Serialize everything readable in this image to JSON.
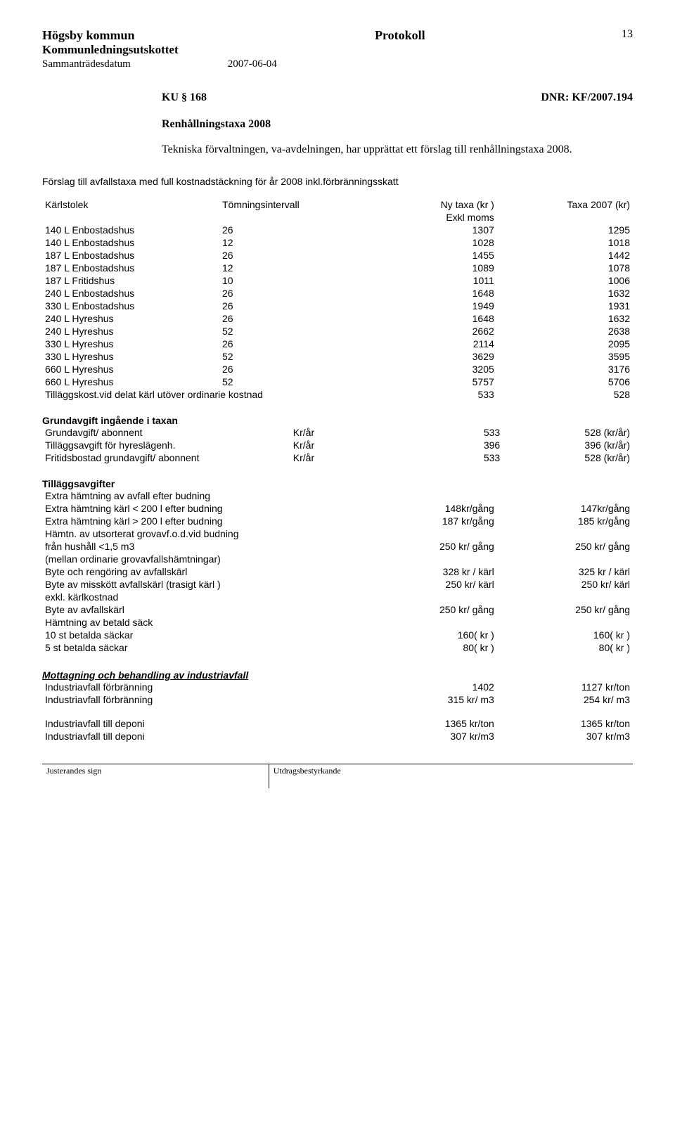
{
  "header": {
    "kommun": "Högsby kommun",
    "protokoll": "Protokoll",
    "page": "13",
    "kommitte": "Kommunledningsutskottet",
    "datum_label": "Sammanträdesdatum",
    "datum": "2007-06-04"
  },
  "ku": {
    "label": "KU § 168",
    "dnr": "DNR: KF/2007.194"
  },
  "title": "Renhållningstaxa 2008",
  "intro": "Tekniska förvaltningen, va-avdelningen, har upprättat ett förslag till renhållningstaxa 2008.",
  "forslag": "Förslag till avfallstaxa med full kostnadstäckning för år 2008 inkl.förbränningsskatt",
  "main_table": {
    "headers": [
      "Kärlstolek",
      "Tömningsintervall",
      "Ny taxa (kr )",
      "Taxa 2007 (kr)"
    ],
    "subheader": "Exkl moms",
    "rows": [
      [
        "140 L  Enbostadshus",
        "26",
        "1307",
        "1295"
      ],
      [
        "140 L  Enbostadshus",
        "12",
        "1028",
        "1018"
      ],
      [
        "187 L  Enbostadshus",
        "26",
        "1455",
        "1442"
      ],
      [
        "187 L  Enbostadshus",
        "12",
        "1089",
        "1078"
      ],
      [
        "187 L  Fritidshus",
        "10",
        "1011",
        "1006"
      ],
      [
        "240 L  Enbostadshus",
        "26",
        "1648",
        "1632"
      ],
      [
        "330 L  Enbostadshus",
        "26",
        "1949",
        "1931"
      ],
      [
        "240 L  Hyreshus",
        "26",
        "1648",
        "1632"
      ],
      [
        "240 L  Hyreshus",
        "52",
        "2662",
        "2638"
      ],
      [
        "330 L  Hyreshus",
        "26",
        "2114",
        "2095"
      ],
      [
        "330 L  Hyreshus",
        "52",
        "3629",
        "3595"
      ],
      [
        "660 L  Hyreshus",
        "26",
        "3205",
        "3176"
      ],
      [
        "660 L  Hyreshus",
        "52",
        "5757",
        "5706"
      ]
    ],
    "tillagg_row": [
      "Tilläggskost.vid delat kärl utöver ordinarie kostnad",
      "533",
      "528"
    ]
  },
  "grundavgift": {
    "title": "Grundavgift ingående i taxan",
    "rows": [
      [
        "Grundavgift/ abonnent",
        "Kr/år",
        "533",
        "528 (kr/år)"
      ],
      [
        "Tilläggsavgift för hyreslägenh.",
        "Kr/år",
        "396",
        "396 (kr/år)"
      ],
      [
        "Fritidsbostad grundavgift/ abonnent",
        "Kr/år",
        "533",
        "528 (kr/år)"
      ]
    ]
  },
  "tillaggsavgifter": {
    "title": "Tilläggsavgifter",
    "rows": [
      [
        "Extra hämtning av avfall efter budning",
        "",
        ""
      ],
      [
        "Extra hämtning kärl < 200 l efter budning",
        "148kr/gång",
        "147kr/gång"
      ],
      [
        "Extra hämtning kärl > 200 l efter budning",
        "187 kr/gång",
        "185 kr/gång"
      ],
      [
        "Hämtn. av  utsorterat grovavf.o.d.vid budning",
        "",
        ""
      ],
      [
        "från hushåll   <1,5 m3",
        "250 kr/ gång",
        "250 kr/ gång"
      ],
      [
        "(mellan ordinarie grovavfallshämtningar)",
        "",
        ""
      ],
      [
        "Byte och rengöring av avfallskärl",
        "328 kr / kärl",
        "325 kr / kärl"
      ],
      [
        "Byte av misskött avfallskärl (trasigt kärl )",
        "250 kr/ kärl",
        "250 kr/ kärl"
      ],
      [
        "exkl. kärlkostnad",
        "",
        ""
      ],
      [
        "Byte av avfallskärl",
        "250 kr/ gång",
        "250 kr/ gång"
      ],
      [
        "Hämtning av betald säck",
        "",
        ""
      ],
      [
        "10 st betalda säckar",
        "160( kr )",
        "160( kr )"
      ],
      [
        "5 st betalda säckar",
        "80( kr )",
        "80( kr )"
      ]
    ]
  },
  "industri": {
    "title": "Mottagning och behandling av industriavfall",
    "rows": [
      [
        "Industriavfall förbränning",
        "1402",
        "1127 kr/ton"
      ],
      [
        "Industriavfall förbränning",
        "315 kr/ m3",
        "254 kr/ m3"
      ]
    ],
    "rows2": [
      [
        "Industriavfall till deponi",
        "1365 kr/ton",
        "1365 kr/ton"
      ],
      [
        "Industriavfall till deponi",
        "307 kr/m3",
        "307 kr/m3"
      ]
    ]
  },
  "footer": {
    "left": "Justerandes sign",
    "right": "Utdragsbestyrkande"
  }
}
